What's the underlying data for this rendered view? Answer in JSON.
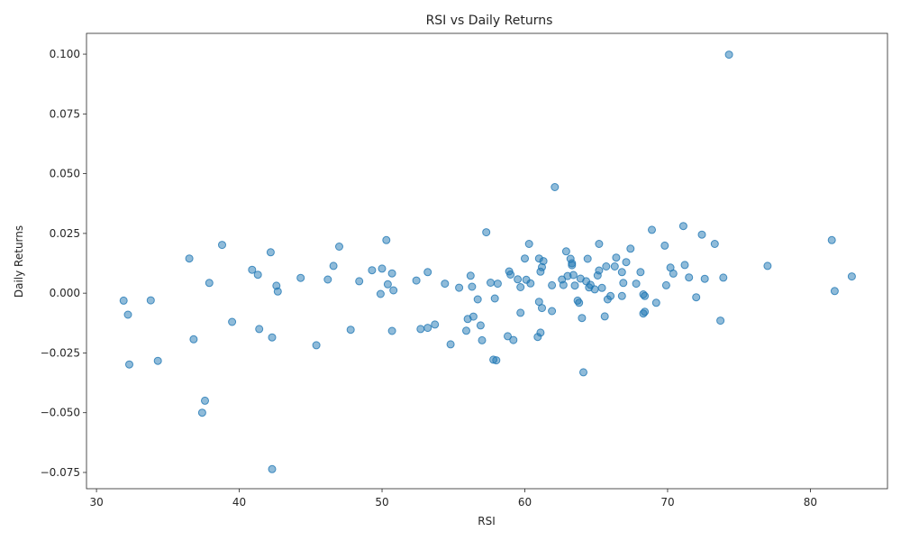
{
  "chart_data": {
    "type": "scatter",
    "title": "RSI vs Daily Returns",
    "xlabel": "RSI",
    "ylabel": "Daily Returns",
    "xlim": [
      29.3,
      85.4
    ],
    "ylim": [
      -0.0818,
      0.1087
    ],
    "xticks": [
      30,
      40,
      50,
      60,
      70,
      80
    ],
    "yticks": [
      -0.075,
      -0.05,
      -0.025,
      0.0,
      0.025,
      0.05,
      0.075,
      0.1
    ],
    "xtick_labels": [
      "30",
      "40",
      "50",
      "60",
      "70",
      "80"
    ],
    "ytick_labels": [
      "−0.075",
      "−0.050",
      "−0.025",
      "0.000",
      "0.025",
      "0.050",
      "0.075",
      "0.100"
    ],
    "grid": false,
    "color": "#1f77b4",
    "points": [
      [
        31.9,
        -0.0031
      ],
      [
        32.2,
        -0.009
      ],
      [
        32.3,
        -0.0298
      ],
      [
        33.8,
        -0.003
      ],
      [
        34.3,
        -0.0283
      ],
      [
        36.5,
        0.0145
      ],
      [
        36.8,
        -0.0193
      ],
      [
        37.4,
        -0.05
      ],
      [
        37.6,
        -0.045
      ],
      [
        37.9,
        0.0043
      ],
      [
        38.8,
        0.0202
      ],
      [
        39.5,
        -0.012
      ],
      [
        40.9,
        0.0098
      ],
      [
        41.3,
        0.0077
      ],
      [
        41.4,
        -0.015
      ],
      [
        42.2,
        0.0171
      ],
      [
        42.3,
        -0.0185
      ],
      [
        42.3,
        -0.0736
      ],
      [
        42.6,
        0.0031
      ],
      [
        42.7,
        0.0007
      ],
      [
        44.3,
        0.0064
      ],
      [
        45.4,
        -0.0218
      ],
      [
        46.2,
        0.0057
      ],
      [
        46.6,
        0.0114
      ],
      [
        47.0,
        0.0195
      ],
      [
        47.8,
        -0.0153
      ],
      [
        48.4,
        0.005
      ],
      [
        49.3,
        0.0096
      ],
      [
        49.9,
        -0.0003
      ],
      [
        50.0,
        0.0103
      ],
      [
        50.3,
        0.0222
      ],
      [
        50.4,
        0.0037
      ],
      [
        50.7,
        0.0083
      ],
      [
        50.7,
        -0.0158
      ],
      [
        50.8,
        0.0012
      ],
      [
        52.4,
        0.0053
      ],
      [
        52.7,
        -0.015
      ],
      [
        53.2,
        -0.0145
      ],
      [
        53.2,
        0.0088
      ],
      [
        53.7,
        -0.0131
      ],
      [
        54.4,
        0.004
      ],
      [
        54.8,
        -0.0214
      ],
      [
        55.4,
        0.0023
      ],
      [
        55.9,
        -0.0157
      ],
      [
        56.0,
        -0.0108
      ],
      [
        56.2,
        0.0073
      ],
      [
        56.3,
        0.0027
      ],
      [
        56.4,
        -0.0098
      ],
      [
        56.7,
        -0.0026
      ],
      [
        56.9,
        -0.0135
      ],
      [
        57.0,
        -0.0197
      ],
      [
        57.3,
        0.0255
      ],
      [
        57.6,
        0.0044
      ],
      [
        57.8,
        -0.0278
      ],
      [
        57.9,
        -0.0022
      ],
      [
        58.0,
        -0.0281
      ],
      [
        58.1,
        0.004
      ],
      [
        58.8,
        -0.018
      ],
      [
        58.9,
        0.0091
      ],
      [
        59.0,
        0.0078
      ],
      [
        59.2,
        -0.0196
      ],
      [
        59.5,
        0.0058
      ],
      [
        59.7,
        0.0025
      ],
      [
        59.7,
        -0.0082
      ],
      [
        60.0,
        0.0145
      ],
      [
        60.1,
        0.0056
      ],
      [
        60.3,
        0.0206
      ],
      [
        60.4,
        0.0041
      ],
      [
        60.9,
        -0.0183
      ],
      [
        61.0,
        0.0145
      ],
      [
        61.0,
        -0.0036
      ],
      [
        61.1,
        0.009
      ],
      [
        61.1,
        -0.0165
      ],
      [
        61.2,
        0.0109
      ],
      [
        61.2,
        -0.0062
      ],
      [
        61.3,
        0.0134
      ],
      [
        61.9,
        0.0033
      ],
      [
        61.9,
        -0.0075
      ],
      [
        62.1,
        0.0444
      ],
      [
        62.6,
        0.0057
      ],
      [
        62.7,
        0.0034
      ],
      [
        62.9,
        0.0175
      ],
      [
        63.0,
        0.0072
      ],
      [
        63.2,
        0.0144
      ],
      [
        63.3,
        0.0125
      ],
      [
        63.3,
        0.0117
      ],
      [
        63.4,
        0.0076
      ],
      [
        63.5,
        0.0032
      ],
      [
        63.7,
        -0.0031
      ],
      [
        63.8,
        -0.004
      ],
      [
        63.9,
        0.0061
      ],
      [
        64.0,
        -0.0104
      ],
      [
        64.1,
        -0.0331
      ],
      [
        64.3,
        0.005
      ],
      [
        64.4,
        0.0144
      ],
      [
        64.5,
        0.0024
      ],
      [
        64.6,
        0.0035
      ],
      [
        64.9,
        0.0016
      ],
      [
        65.1,
        0.0074
      ],
      [
        65.2,
        0.0206
      ],
      [
        65.2,
        0.0095
      ],
      [
        65.4,
        0.0022
      ],
      [
        65.6,
        -0.0097
      ],
      [
        65.7,
        0.0112
      ],
      [
        65.8,
        -0.0026
      ],
      [
        66.0,
        -0.0012
      ],
      [
        66.3,
        0.0112
      ],
      [
        66.4,
        0.0149
      ],
      [
        66.8,
        0.0088
      ],
      [
        66.8,
        -0.0012
      ],
      [
        66.9,
        0.0043
      ],
      [
        67.1,
        0.013
      ],
      [
        67.4,
        0.0186
      ],
      [
        67.8,
        0.004
      ],
      [
        68.1,
        0.0088
      ],
      [
        68.3,
        -0.0005
      ],
      [
        68.3,
        -0.0085
      ],
      [
        68.4,
        -0.0012
      ],
      [
        68.4,
        -0.0078
      ],
      [
        68.9,
        0.0265
      ],
      [
        69.2,
        -0.004
      ],
      [
        69.8,
        0.0199
      ],
      [
        69.9,
        0.0033
      ],
      [
        70.2,
        0.0107
      ],
      [
        70.4,
        0.0082
      ],
      [
        71.1,
        0.0281
      ],
      [
        71.2,
        0.0118
      ],
      [
        71.5,
        0.0066
      ],
      [
        72.0,
        -0.0017
      ],
      [
        72.4,
        0.0245
      ],
      [
        72.6,
        0.006
      ],
      [
        73.3,
        0.0206
      ],
      [
        73.7,
        -0.0115
      ],
      [
        73.9,
        0.0065
      ],
      [
        74.3,
        0.0998
      ],
      [
        77.0,
        0.0114
      ],
      [
        81.5,
        0.0222
      ],
      [
        81.7,
        0.0009
      ],
      [
        82.9,
        0.007
      ]
    ]
  }
}
